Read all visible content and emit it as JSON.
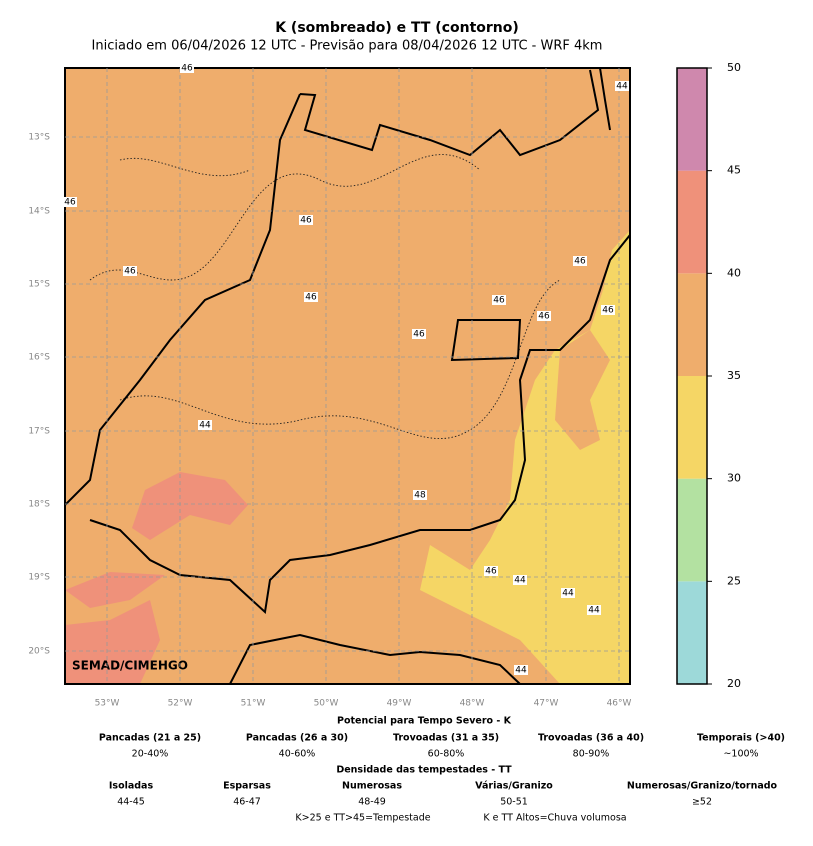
{
  "header": {
    "title": "K (sombreado) e TT (contorno)",
    "subtitle": "Iniciado em 06/04/2026 12 UTC - Previsão para 08/04/2026 12 UTC - WRF 4km"
  },
  "map": {
    "lat_labels": [
      "13°S",
      "14°S",
      "15°S",
      "16°S",
      "17°S",
      "18°S",
      "19°S",
      "20°S"
    ],
    "lon_labels": [
      "53°W",
      "52°W",
      "51°W",
      "50°W",
      "49°W",
      "48°W",
      "47°W",
      "46°W"
    ],
    "contour_labels": [
      "44",
      "46",
      "46",
      "46",
      "46",
      "46",
      "46",
      "46",
      "46",
      "46",
      "44",
      "48",
      "46",
      "44",
      "44",
      "44",
      "44",
      "46"
    ],
    "watermark": "SEMAD/CIMEHGO"
  },
  "colorbar": {
    "ticks": [
      20,
      25,
      30,
      35,
      40,
      45,
      50
    ],
    "colors": [
      "#9dd9d9",
      "#b3e1a1",
      "#f5d665",
      "#efad6c",
      "#ef917a",
      "#cf88ad"
    ]
  },
  "legend": {
    "k_title": "Potencial para Tempo Severo - K",
    "k_items": [
      {
        "name": "Pancadas (21 a 25)",
        "range": "20-40%"
      },
      {
        "name": "Pancadas (26 a 30)",
        "range": "40-60%"
      },
      {
        "name": "Trovoadas (31 a 35)",
        "range": "60-80%"
      },
      {
        "name": "Trovoadas (36 a 40)",
        "range": "80-90%"
      },
      {
        "name": "Temporais (>40)",
        "range": "~100%"
      }
    ],
    "tt_title": "Densidade das tempestades - TT",
    "tt_items": [
      {
        "name": "Isoladas",
        "range": "44-45"
      },
      {
        "name": "Esparsas",
        "range": "46-47"
      },
      {
        "name": "Numerosas",
        "range": "48-49"
      },
      {
        "name": "Várias/Granizo",
        "range": "50-51"
      },
      {
        "name": "Numerosas/Granizo/tornado",
        "range": "≥52"
      }
    ],
    "footer": [
      "K>25 e TT>45=Tempestade",
      "K e TT Altos=Chuva volumosa"
    ]
  }
}
